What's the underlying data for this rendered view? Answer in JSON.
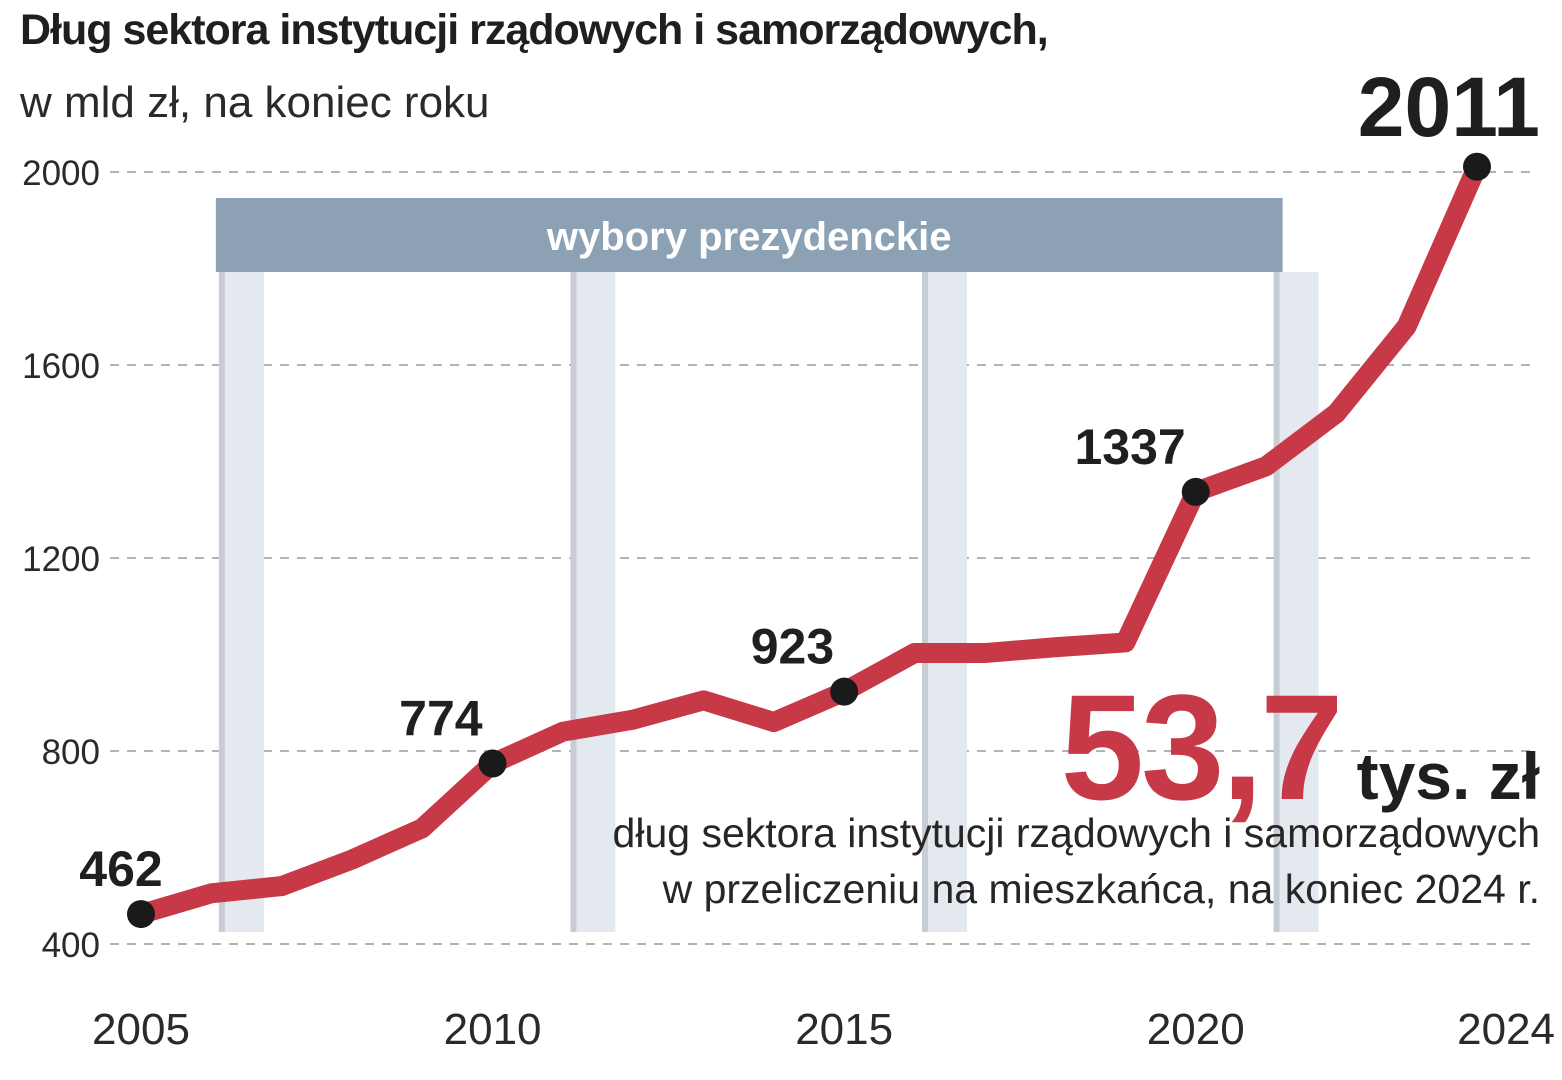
{
  "title": "Dług sektora instytucji rządowych i samorządowych,",
  "subtitle": "w mld zł, na koniec roku",
  "band_label": "wybory prezydenckie",
  "per_capita": {
    "value": "53,7",
    "unit": "tys. zł",
    "caption_line1": "dług sektora instytucji rządowych i samorządowych",
    "caption_line2": "w przeliczeniu na mieszkańca, na koniec 2024 r."
  },
  "colors": {
    "line": "#c73946",
    "marker": "#1a1a1a",
    "band": "#8da1b5",
    "highlight": "#1f1f1f",
    "grid": "#9a9a9a"
  },
  "chart_data": {
    "type": "line",
    "x": [
      2005,
      2006,
      2007,
      2008,
      2009,
      2010,
      2011,
      2012,
      2013,
      2014,
      2015,
      2016,
      2017,
      2018,
      2019,
      2020,
      2021,
      2022,
      2023,
      2024
    ],
    "series": [
      {
        "values": [
          462,
          505,
          520,
          575,
          640,
          774,
          840,
          865,
          905,
          860,
          923,
          1003,
          1003,
          1015,
          1025,
          1337,
          1390,
          1500,
          1680,
          2011
        ]
      }
    ],
    "labeled_points": [
      {
        "x": 2005,
        "label": "462"
      },
      {
        "x": 2010,
        "label": "774"
      },
      {
        "x": 2015,
        "label": "923"
      },
      {
        "x": 2020,
        "label": "1337"
      },
      {
        "x": 2024,
        "label": "2011"
      }
    ],
    "highlight_label_x": 2024,
    "election_years": [
      2005,
      2010,
      2015,
      2020
    ],
    "yticks": [
      400,
      800,
      1200,
      1600,
      2000
    ],
    "xticks": [
      2005,
      2010,
      2015,
      2020,
      2024
    ],
    "ylim": [
      400,
      2000
    ],
    "xlim": [
      2005,
      2024
    ],
    "grid": true,
    "grid_style": "dashed horizontal"
  }
}
